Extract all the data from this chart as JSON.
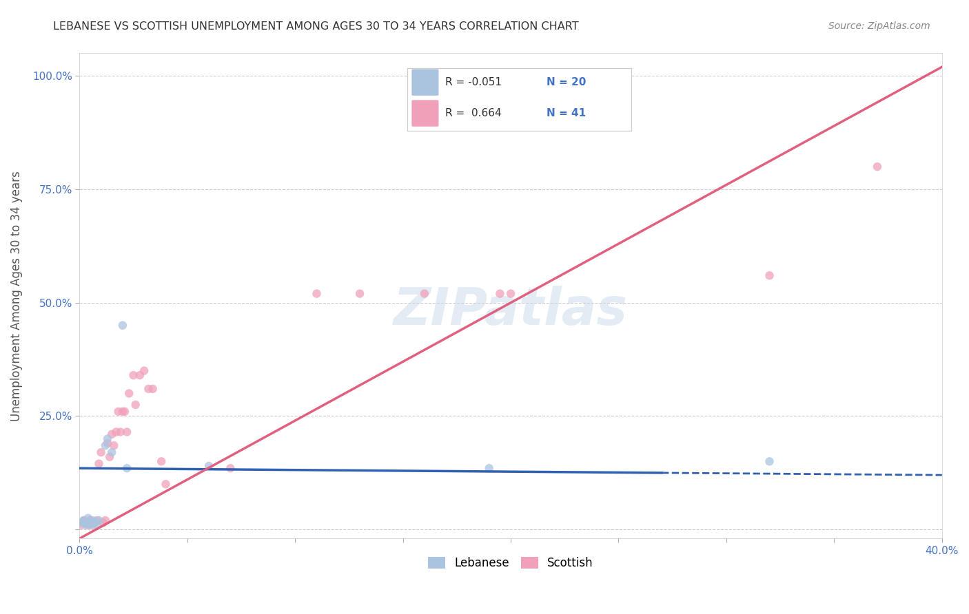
{
  "title": "LEBANESE VS SCOTTISH UNEMPLOYMENT AMONG AGES 30 TO 34 YEARS CORRELATION CHART",
  "source": "Source: ZipAtlas.com",
  "ylabel_text": "Unemployment Among Ages 30 to 34 years",
  "xlim": [
    0.0,
    0.4
  ],
  "ylim": [
    -0.02,
    1.05
  ],
  "x_tick_positions": [
    0.0,
    0.05,
    0.1,
    0.15,
    0.2,
    0.25,
    0.3,
    0.35,
    0.4
  ],
  "x_tick_labels": [
    "0.0%",
    "",
    "",
    "",
    "",
    "",
    "",
    "",
    "40.0%"
  ],
  "y_tick_positions": [
    0.0,
    0.25,
    0.5,
    0.75,
    1.0
  ],
  "y_tick_labels": [
    "",
    "25.0%",
    "50.0%",
    "75.0%",
    "100.0%"
  ],
  "watermark": "ZIPatlas",
  "lebanese_color": "#aac4e0",
  "scottish_color": "#f0a0b8",
  "lebanese_line_color": "#3060b0",
  "scottish_line_color": "#e06080",
  "background_color": "#ffffff",
  "grid_color": "#cccccc",
  "title_color": "#303030",
  "axis_label_color": "#4472c4",
  "marker_size": 80,
  "leb_line_y0": 0.135,
  "leb_line_y1": 0.12,
  "sco_line_y0": -0.02,
  "sco_line_y1": 1.02,
  "lebanese_scatter": [
    [
      0.001,
      0.015
    ],
    [
      0.002,
      0.015
    ],
    [
      0.002,
      0.02
    ],
    [
      0.003,
      0.01
    ],
    [
      0.004,
      0.015
    ],
    [
      0.004,
      0.025
    ],
    [
      0.005,
      0.01
    ],
    [
      0.006,
      0.015
    ],
    [
      0.006,
      0.02
    ],
    [
      0.007,
      0.015
    ],
    [
      0.008,
      0.01
    ],
    [
      0.009,
      0.02
    ],
    [
      0.012,
      0.185
    ],
    [
      0.013,
      0.2
    ],
    [
      0.015,
      0.17
    ],
    [
      0.02,
      0.45
    ],
    [
      0.022,
      0.135
    ],
    [
      0.06,
      0.14
    ],
    [
      0.19,
      0.135
    ],
    [
      0.32,
      0.15
    ]
  ],
  "scottish_scatter": [
    [
      0.001,
      0.01
    ],
    [
      0.002,
      0.015
    ],
    [
      0.002,
      0.02
    ],
    [
      0.003,
      0.015
    ],
    [
      0.004,
      0.01
    ],
    [
      0.005,
      0.015
    ],
    [
      0.005,
      0.02
    ],
    [
      0.006,
      0.01
    ],
    [
      0.007,
      0.015
    ],
    [
      0.008,
      0.02
    ],
    [
      0.009,
      0.145
    ],
    [
      0.01,
      0.17
    ],
    [
      0.011,
      0.015
    ],
    [
      0.012,
      0.02
    ],
    [
      0.013,
      0.19
    ],
    [
      0.014,
      0.16
    ],
    [
      0.015,
      0.21
    ],
    [
      0.016,
      0.185
    ],
    [
      0.017,
      0.215
    ],
    [
      0.018,
      0.26
    ],
    [
      0.019,
      0.215
    ],
    [
      0.02,
      0.26
    ],
    [
      0.021,
      0.26
    ],
    [
      0.022,
      0.215
    ],
    [
      0.023,
      0.3
    ],
    [
      0.025,
      0.34
    ],
    [
      0.026,
      0.275
    ],
    [
      0.028,
      0.34
    ],
    [
      0.03,
      0.35
    ],
    [
      0.032,
      0.31
    ],
    [
      0.034,
      0.31
    ],
    [
      0.038,
      0.15
    ],
    [
      0.04,
      0.1
    ],
    [
      0.07,
      0.135
    ],
    [
      0.11,
      0.52
    ],
    [
      0.13,
      0.52
    ],
    [
      0.16,
      0.52
    ],
    [
      0.195,
      0.52
    ],
    [
      0.2,
      0.52
    ],
    [
      0.32,
      0.56
    ],
    [
      0.37,
      0.8
    ]
  ]
}
